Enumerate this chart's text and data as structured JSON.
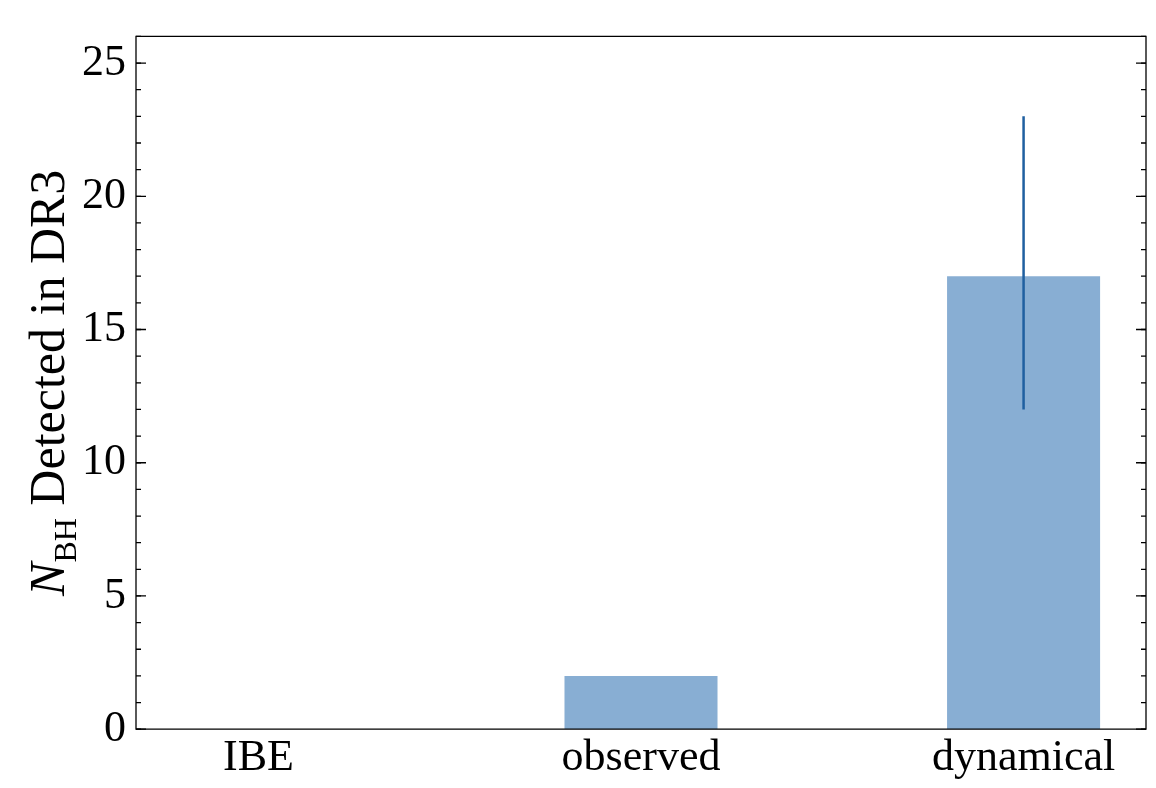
{
  "chart_data": {
    "type": "bar",
    "ylabel": "N$_{BH}$ Detected in DR3",
    "categories": [
      "IBE",
      "observed",
      "dynamical"
    ],
    "values": [
      0,
      2,
      17
    ],
    "errors": [
      null,
      null,
      [
        12,
        23
      ]
    ],
    "color": "#88aed3",
    "ylim": [
      0,
      26
    ],
    "yticks": [
      0,
      5,
      10,
      15,
      20,
      25
    ],
    "grid": false,
    "legend": false
  }
}
